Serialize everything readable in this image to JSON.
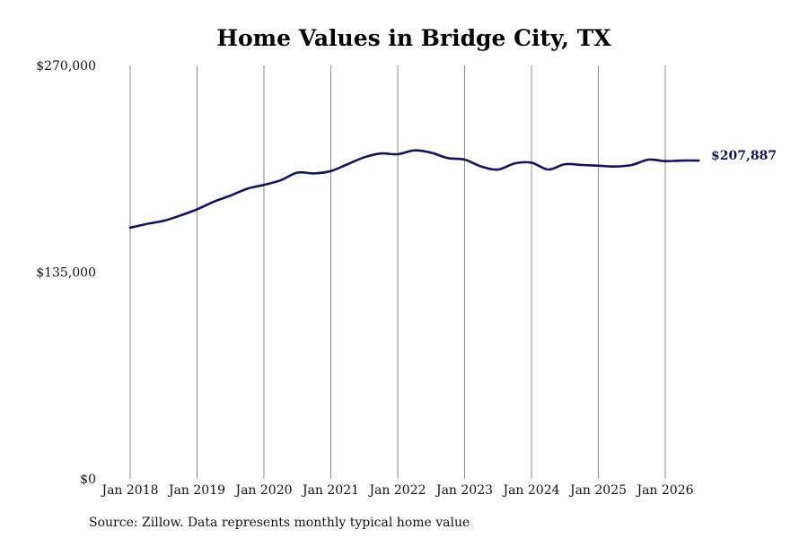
{
  "chart_data": {
    "type": "line",
    "title": "Home Values in Bridge City, TX",
    "xlabel": "",
    "ylabel": "",
    "x_tick_labels": [
      "Jan 2018",
      "Jan 2019",
      "Jan 2020",
      "Jan 2021",
      "Jan 2022",
      "Jan 2023",
      "Jan 2024",
      "Jan 2025",
      "Jan 2026"
    ],
    "x_tick_years": [
      2018,
      2019,
      2020,
      2021,
      2022,
      2023,
      2024,
      2025,
      2026
    ],
    "y_tick_labels": [
      "$0",
      "$135,000",
      "$270,000"
    ],
    "y_tick_values": [
      0,
      135000,
      270000
    ],
    "ylim": [
      0,
      270000
    ],
    "grid": "vertical",
    "line_color": "#12125e",
    "end_value_label": "$207,887",
    "series": [
      {
        "x": [
          "2018-01",
          "2018-04",
          "2018-07",
          "2018-10",
          "2019-01",
          "2019-04",
          "2019-07",
          "2019-10",
          "2020-01",
          "2020-04",
          "2020-07",
          "2020-10",
          "2021-01",
          "2021-04",
          "2021-07",
          "2021-10",
          "2022-01",
          "2022-04",
          "2022-07",
          "2022-10",
          "2023-01",
          "2023-04",
          "2023-07",
          "2023-10",
          "2024-01",
          "2024-04",
          "2024-07",
          "2024-10",
          "2025-01",
          "2025-04",
          "2025-07",
          "2025-10",
          "2026-01",
          "2026-04",
          "2026-07"
        ],
        "y": [
          164000,
          166500,
          168500,
          172000,
          176000,
          181000,
          185000,
          189500,
          192000,
          195000,
          200000,
          199500,
          201000,
          205500,
          210000,
          212500,
          212000,
          214500,
          213000,
          209500,
          208500,
          204000,
          202000,
          206000,
          206500,
          202000,
          205500,
          205000,
          204500,
          204000,
          205000,
          208500,
          207500,
          207887,
          207887
        ]
      }
    ]
  },
  "source_note": "Source: Zillow. Data represents monthly typical home value"
}
